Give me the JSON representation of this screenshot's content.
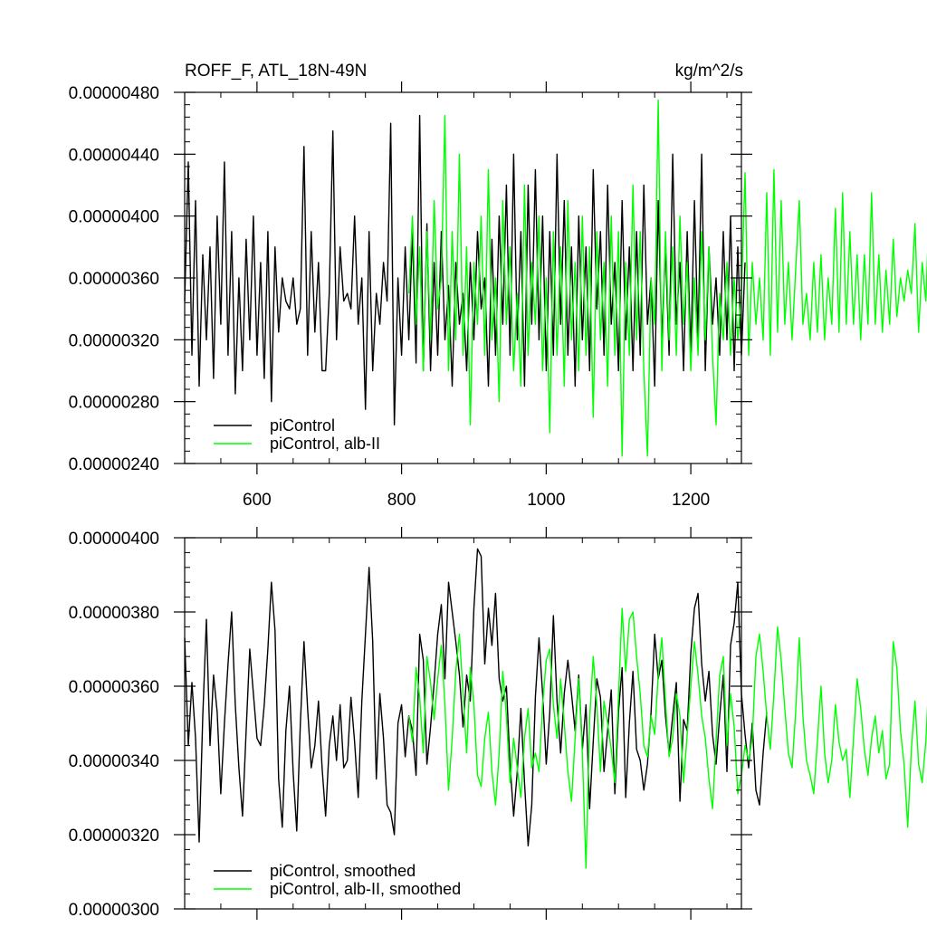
{
  "chart_data": [
    {
      "type": "line",
      "title": "ROFF_F, ATL_18N-49N",
      "units": "kg/m^2/s",
      "xlabel": "",
      "ylabel": "",
      "xlim": [
        500,
        1270
      ],
      "ylim": [
        2.4e-06,
        4.8e-06
      ],
      "xticks": [
        600,
        800,
        1000,
        1200
      ],
      "xtick_labels": [
        "600",
        "800",
        "1000",
        "1200"
      ],
      "yticks": [
        2.4e-06,
        2.8e-06,
        3.2e-06,
        3.6e-06,
        4e-06,
        4.4e-06,
        4.8e-06
      ],
      "ytick_labels": [
        "0.00000240",
        "0.00000280",
        "0.00000320",
        "0.00000360",
        "0.00000400",
        "0.00000440",
        "0.00000480"
      ],
      "legend_position": "bottom-left",
      "series": [
        {
          "name": "piControl",
          "color": "#000000",
          "x_start": 500,
          "x_step": 5,
          "values": [
            3.45e-06,
            4.35e-06,
            3.1e-06,
            4.1e-06,
            2.9e-06,
            3.75e-06,
            3.2e-06,
            3.8e-06,
            2.95e-06,
            4e-06,
            3.3e-06,
            4.35e-06,
            3.1e-06,
            3.9e-06,
            2.85e-06,
            3.6e-06,
            3e-06,
            3.85e-06,
            3.2e-06,
            4e-06,
            3.1e-06,
            3.7e-06,
            2.95e-06,
            3.9e-06,
            2.8e-06,
            3.8e-06,
            3.25e-06,
            3.6e-06,
            3.45e-06,
            3.4e-06,
            3.6e-06,
            3.3e-06,
            3.4e-06,
            4.45e-06,
            3.1e-06,
            3.9e-06,
            3.25e-06,
            3.7e-06,
            3e-06,
            3e-06,
            3.5e-06,
            4.55e-06,
            3.2e-06,
            3.8e-06,
            3.45e-06,
            3.5e-06,
            3.4e-06,
            4e-06,
            3.3e-06,
            3.6e-06,
            2.75e-06,
            3.9e-06,
            3e-06,
            3.5e-06,
            3.3e-06,
            3.7e-06,
            3.45e-06,
            4.6e-06,
            2.65e-06,
            3.6e-06,
            3.1e-06,
            3.8e-06,
            3.2e-06,
            3.9e-06,
            3.05e-06,
            4.65e-06,
            3e-06,
            3.95e-06,
            3e-06,
            3.7e-06,
            3.1e-06,
            3.9e-06,
            3.2e-06,
            3.55e-06,
            2.9e-06,
            3.7e-06,
            3.3e-06,
            3.5e-06,
            3e-06,
            3.7e-06,
            3.2e-06,
            3.9e-06,
            3.4e-06,
            3.6e-06,
            2.9e-06,
            3.85e-06,
            3.1e-06,
            4e-06,
            3.3e-06,
            4.2e-06,
            3.1e-06,
            4.4e-06,
            3.2e-06,
            3.9e-06,
            2.9e-06,
            4.2e-06,
            3.3e-06,
            4.3e-06,
            3.2e-06,
            4e-06,
            3e-06,
            3.9e-06,
            3.1e-06,
            4.4e-06,
            3.3e-06,
            4.1e-06,
            3.1e-06,
            3.8e-06,
            2.9e-06,
            4e-06,
            3.2e-06,
            3.8e-06,
            3e-06,
            4.3e-06,
            3.4e-06,
            3.9e-06,
            3.1e-06,
            4.2e-06,
            3.3e-06,
            3.7e-06,
            3e-06,
            4.1e-06,
            3.2e-06,
            3.8e-06,
            3e-06,
            3.9e-06,
            3.1e-06,
            4.2e-06,
            3.3e-06,
            3.6e-06,
            2.9e-06,
            4.1e-06,
            3.2e-06,
            3.8e-06,
            3.1e-06,
            4.4e-06,
            3.3e-06,
            3.7e-06,
            3e-06,
            3.9e-06,
            3.1e-06,
            4.1e-06,
            3.2e-06,
            4.4e-06,
            3e-06,
            3.8e-06,
            3.3e-06,
            3.6e-06,
            3.1e-06,
            3.9e-06,
            3.2e-06,
            4e-06,
            3e-06,
            3.8e-06,
            3.1e-06,
            3.7e-06
          ]
        },
        {
          "name": "piControl, alb-II",
          "color": "#00ff00",
          "x_start": 810,
          "x_step": 5,
          "values": [
            3.5e-06,
            4e-06,
            3.3e-06,
            3.8e-06,
            3e-06,
            3.9e-06,
            3.2e-06,
            4.1e-06,
            3.4e-06,
            3.6e-06,
            4.65e-06,
            3e-06,
            3.9e-06,
            3.2e-06,
            4.4e-06,
            3.1e-06,
            3.8e-06,
            2.65e-06,
            3.7e-06,
            3.3e-06,
            4e-06,
            3.1e-06,
            4.3e-06,
            3.2e-06,
            3.6e-06,
            2.8e-06,
            4.1e-06,
            3.3e-06,
            3.8e-06,
            3e-06,
            3.5e-06,
            2.9e-06,
            4.2e-06,
            3.1e-06,
            3.7e-06,
            3.3e-06,
            4e-06,
            3e-06,
            3.6e-06,
            2.6e-06,
            3.9e-06,
            3.1e-06,
            3.8e-06,
            2.9e-06,
            4.1e-06,
            3.2e-06,
            3.7e-06,
            3e-06,
            4e-06,
            3.1e-06,
            3.8e-06,
            2.7e-06,
            3.9e-06,
            3.2e-06,
            3.7e-06,
            2.9e-06,
            4e-06,
            3.1e-06,
            3.9e-06,
            2.45e-06,
            3.7e-06,
            3.1e-06,
            4.2e-06,
            3.2e-06,
            3.9e-06,
            3e-06,
            2.45e-06,
            3.6e-06,
            3.3e-06,
            4.75e-06,
            3e-06,
            3.9e-06,
            3.2e-06,
            3.8e-06,
            3.1e-06,
            4e-06,
            3.3e-06,
            3.7e-06,
            3e-06,
            3.6e-06,
            3.1e-06,
            3.9e-06,
            3.2e-06,
            3.8e-06,
            3.1e-06,
            2.65e-06,
            3.5e-06,
            3.2e-06,
            3.7e-06,
            3.1e-06,
            3.6e-06,
            3.2e-06,
            3.5e-06,
            4.28e-06,
            3.1e-06,
            3.7e-06,
            3.3e-06,
            3.6e-06,
            3.2e-06,
            4.15e-06,
            3.1e-06,
            4.3e-06,
            3.25e-06,
            4.1e-06,
            3.3e-06,
            3.7e-06,
            3.2e-06,
            3.65e-06,
            4.1e-06,
            3.3e-06,
            3.5e-06,
            3.2e-06,
            3.7e-06,
            3.25e-06,
            3.75e-06,
            3.2e-06,
            3.6e-06,
            3.3e-06,
            4.05e-06,
            3.25e-06,
            4.15e-06,
            3.3e-06,
            3.9e-06,
            3.3e-06,
            3.75e-06,
            3.2e-06,
            3.75e-06,
            3.3e-06,
            4.15e-06,
            3.3e-06,
            3.75e-06,
            3.25e-06,
            3.65e-06,
            3.3e-06,
            3.85e-06,
            3.35e-06,
            3.6e-06,
            3.45e-06,
            3.65e-06,
            3.5e-06,
            3.95e-06,
            3.25e-06,
            3.7e-06,
            3.45e-06,
            4.1e-06,
            3.5e-06,
            4e-06,
            3.65e-06,
            4.1e-06,
            3.55e-06
          ]
        }
      ],
      "legend": [
        "piControl",
        "piControl, alb-II"
      ]
    },
    {
      "type": "line",
      "title": "",
      "xlabel": "",
      "ylabel": "",
      "xlim": [
        500,
        1270
      ],
      "ylim": [
        3e-06,
        4e-06
      ],
      "xticks": [
        600,
        800,
        1000,
        1200
      ],
      "yticks": [
        3e-06,
        3.2e-06,
        3.4e-06,
        3.6e-06,
        3.8e-06,
        4e-06
      ],
      "ytick_labels": [
        "0.00000300",
        "0.00000320",
        "0.00000340",
        "0.00000360",
        "0.00000380",
        "0.00000400"
      ],
      "legend_position": "bottom-left",
      "series": [
        {
          "name": "piControl, smoothed",
          "color": "#000000",
          "x_start": 500,
          "x_step": 5,
          "values": [
            3.73e-06,
            3.44e-06,
            3.61e-06,
            3.46e-06,
            3.18e-06,
            3.52e-06,
            3.78e-06,
            3.44e-06,
            3.63e-06,
            3.53e-06,
            3.31e-06,
            3.5e-06,
            3.66e-06,
            3.8e-06,
            3.55e-06,
            3.38e-06,
            3.25e-06,
            3.48e-06,
            3.7e-06,
            3.58e-06,
            3.46e-06,
            3.44e-06,
            3.55e-06,
            3.7e-06,
            3.88e-06,
            3.75e-06,
            3.35e-06,
            3.22e-06,
            3.48e-06,
            3.6e-06,
            3.37e-06,
            3.21e-06,
            3.5e-06,
            3.72e-06,
            3.54e-06,
            3.38e-06,
            3.44e-06,
            3.56e-06,
            3.38e-06,
            3.25e-06,
            3.44e-06,
            3.52e-06,
            3.4e-06,
            3.55e-06,
            3.38e-06,
            3.4e-06,
            3.57e-06,
            3.45e-06,
            3.3e-06,
            3.56e-06,
            3.74e-06,
            3.92e-06,
            3.72e-06,
            3.35e-06,
            3.58e-06,
            3.46e-06,
            3.28e-06,
            3.26e-06,
            3.2e-06,
            3.5e-06,
            3.55e-06,
            3.41e-06,
            3.52e-06,
            3.48e-06,
            3.36e-06,
            3.74e-06,
            3.67e-06,
            3.39e-06,
            3.49e-06,
            3.61e-06,
            3.74e-06,
            3.82e-06,
            3.62e-06,
            3.88e-06,
            3.8e-06,
            3.72e-06,
            3.63e-06,
            3.49e-06,
            3.63e-06,
            3.56e-06,
            3.81e-06,
            3.97e-06,
            3.95e-06,
            3.66e-06,
            3.81e-06,
            3.71e-06,
            3.85e-06,
            3.62e-06,
            3.56e-06,
            3.6e-06,
            3.39e-06,
            3.25e-06,
            3.37e-06,
            3.54e-06,
            3.34e-06,
            3.17e-06,
            3.28e-06,
            3.57e-06,
            3.73e-06,
            3.58e-06,
            3.39e-06,
            3.53e-06,
            3.79e-06,
            3.56e-06,
            3.42e-06,
            3.58e-06,
            3.67e-06,
            3.58e-06,
            3.48e-06,
            3.63e-06,
            3.43e-06,
            3.55e-06,
            3.27e-06,
            3.45e-06,
            3.62e-06,
            3.57e-06,
            3.37e-06,
            3.48e-06,
            3.59e-06,
            3.31e-06,
            3.53e-06,
            3.65e-06,
            3.3e-06,
            3.5e-06,
            3.64e-06,
            3.43e-06,
            3.4e-06,
            3.32e-06,
            3.39e-06,
            3.53e-06,
            3.74e-06,
            3.62e-06,
            3.67e-06,
            3.52e-06,
            3.42e-06,
            3.52e-06,
            3.61e-06,
            3.29e-06,
            3.51e-06,
            3.48e-06,
            3.69e-06,
            3.81e-06,
            3.85e-06,
            3.66e-06,
            3.56e-06,
            3.64e-06,
            3.47e-06,
            3.39e-06,
            3.52e-06,
            3.63e-06,
            3.37e-06,
            3.71e-06,
            3.77e-06,
            3.88e-06,
            3.58e-06,
            3.47e-06,
            3.38e-06,
            3.5e-06,
            3.32e-06,
            3.28e-06,
            3.42e-06,
            3.53e-06
          ]
        },
        {
          "name": "piControl, alb-II, smoothed",
          "color": "#00ff00",
          "x_start": 810,
          "x_step": 5,
          "values": [
            3.52e-06,
            3.45e-06,
            3.65e-06,
            3.57e-06,
            3.42e-06,
            3.68e-06,
            3.61e-06,
            3.51e-06,
            3.62e-06,
            3.71e-06,
            3.55e-06,
            3.32e-06,
            3.46e-06,
            3.64e-06,
            3.74e-06,
            3.58e-06,
            3.42e-06,
            3.65e-06,
            3.55e-06,
            3.36e-06,
            3.33e-06,
            3.46e-06,
            3.53e-06,
            3.37e-06,
            3.28e-06,
            3.42e-06,
            3.64e-06,
            3.52e-06,
            3.34e-06,
            3.46e-06,
            3.38e-06,
            3.3e-06,
            3.46e-06,
            3.54e-06,
            3.38e-06,
            3.42e-06,
            3.37e-06,
            3.55e-06,
            3.67e-06,
            3.7e-06,
            3.55e-06,
            3.46e-06,
            3.62e-06,
            3.5e-06,
            3.37e-06,
            3.29e-06,
            3.46e-06,
            3.62e-06,
            3.42e-06,
            3.11e-06,
            3.51e-06,
            3.68e-06,
            3.55e-06,
            3.37e-06,
            3.56e-06,
            3.5e-06,
            3.43e-06,
            3.34e-06,
            3.57e-06,
            3.81e-06,
            3.64e-06,
            3.78e-06,
            3.8e-06,
            3.68e-06,
            3.58e-06,
            3.44e-06,
            3.41e-06,
            3.52e-06,
            3.47e-06,
            3.63e-06,
            3.73e-06,
            3.56e-06,
            3.41e-06,
            3.46e-06,
            3.58e-06,
            3.52e-06,
            3.34e-06,
            3.47e-06,
            3.6e-06,
            3.72e-06,
            3.63e-06,
            3.52e-06,
            3.46e-06,
            3.35e-06,
            3.27e-06,
            3.45e-06,
            3.63e-06,
            3.68e-06,
            3.44e-06,
            3.58e-06,
            3.49e-06,
            3.31e-06,
            3.36e-06,
            3.44e-06,
            3.4e-06,
            3.46e-06,
            3.68e-06,
            3.74e-06,
            3.64e-06,
            3.52e-06,
            3.43e-06,
            3.58e-06,
            3.76e-06,
            3.67e-06,
            3.54e-06,
            3.42e-06,
            3.38e-06,
            3.53e-06,
            3.73e-06,
            3.52e-06,
            3.4e-06,
            3.36e-06,
            3.31e-06,
            3.45e-06,
            3.6e-06,
            3.42e-06,
            3.34e-06,
            3.4e-06,
            3.55e-06,
            3.45e-06,
            3.4e-06,
            3.43e-06,
            3.3e-06,
            3.46e-06,
            3.62e-06,
            3.54e-06,
            3.43e-06,
            3.36e-06,
            3.46e-06,
            3.52e-06,
            3.42e-06,
            3.48e-06,
            3.35e-06,
            3.39e-06,
            3.72e-06,
            3.65e-06,
            3.48e-06,
            3.39e-06,
            3.22e-06,
            3.43e-06,
            3.56e-06,
            3.39e-06,
            3.34e-06,
            3.45e-06,
            3.65e-06,
            3.58e-06,
            3.32e-06,
            3.47e-06,
            3.41e-06,
            3.31e-06,
            3.43e-06,
            3.56e-06,
            3.48e-06,
            3.54e-06,
            3.39e-06,
            3.53e-06,
            3.62e-06,
            3.51e-06,
            3.32e-06,
            3.47e-06,
            3.89e-06,
            3.92e-06,
            3.73e-06,
            3.51e-06,
            3.49e-06
          ]
        }
      ],
      "legend": [
        "piControl, smoothed",
        "piControl, alb-II, smoothed"
      ]
    }
  ]
}
